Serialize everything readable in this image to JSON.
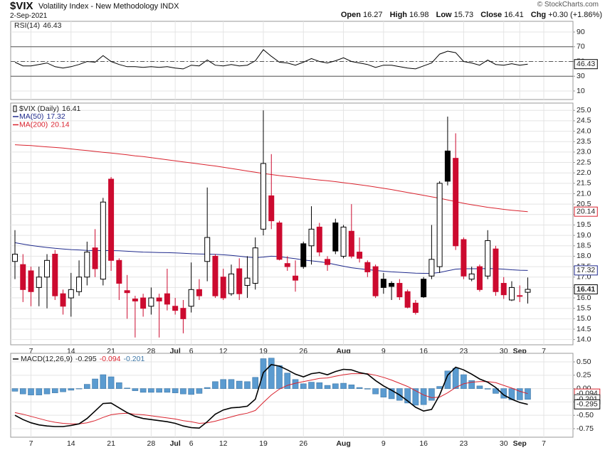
{
  "header": {
    "symbol": "$VIX",
    "name": "Volatility Index - New Methodology INDX",
    "date": "2-Sep-2021",
    "copyright": "© StockCharts.com",
    "quote": [
      {
        "label": "Open",
        "value": 16.27
      },
      {
        "label": "High",
        "value": 16.98
      },
      {
        "label": "Low",
        "value": 15.73
      },
      {
        "label": "Close",
        "value": 16.41
      },
      {
        "label": "Chg",
        "value": "+0.30 (+1.86%)"
      }
    ]
  },
  "chart_data": [
    {
      "type": "line",
      "name": "RSI(14)",
      "ylim": [
        -1.6,
        104.5
      ],
      "yticks": [
        10,
        30,
        50,
        70,
        90
      ],
      "grid": true,
      "reference_lines": [
        {
          "value": 70,
          "style": "solid"
        },
        {
          "value": 50,
          "style": "dashed"
        },
        {
          "value": 30,
          "style": "solid"
        }
      ],
      "series": [
        {
          "color": "#000000",
          "values": [
            49,
            44,
            44,
            46,
            48,
            43,
            41,
            43,
            46,
            50,
            49,
            58,
            50,
            46,
            43,
            43,
            42,
            43,
            42,
            43,
            41,
            40,
            45,
            44,
            52,
            45,
            44,
            46,
            44,
            45,
            51,
            66,
            57,
            49,
            48,
            45,
            49,
            54,
            50,
            48,
            51,
            55,
            50,
            48,
            46,
            42,
            45,
            45,
            43,
            41,
            40,
            44,
            48,
            60,
            64,
            62,
            50,
            48,
            45,
            52,
            46,
            45,
            47,
            45,
            46.43,
            null,
            null
          ]
        }
      ]
    },
    {
      "type": "candlestick",
      "name": "$VIX (Daily)",
      "up_color": "#000000",
      "down_color": "#cc0a2f",
      "grid": true,
      "categories": [
        null,
        null,
        "7",
        null,
        null,
        null,
        null,
        "14",
        null,
        null,
        null,
        null,
        "21",
        null,
        null,
        null,
        null,
        "28",
        null,
        null,
        "Jul",
        null,
        "6",
        null,
        null,
        null,
        "12",
        null,
        null,
        null,
        null,
        "19",
        null,
        null,
        null,
        null,
        "26",
        null,
        null,
        null,
        null,
        "Aug",
        null,
        null,
        null,
        null,
        "9",
        null,
        null,
        null,
        null,
        "16",
        null,
        null,
        null,
        null,
        "23",
        null,
        null,
        null,
        null,
        "30",
        null,
        "Sep",
        null,
        null,
        "7"
      ],
      "open": [
        17.75,
        17.6,
        17.3,
        16.5,
        17.0,
        18.1,
        16.2,
        16.0,
        16.3,
        17.0,
        18.4,
        16.9,
        21.7,
        17.8,
        16.35,
        15.95,
        16.0,
        15.6,
        16.0,
        16.2,
        15.6,
        15.5,
        15.6,
        16.4,
        17.75,
        18.0,
        17.0,
        16.2,
        17.4,
        16.6,
        16.7,
        19.3,
        20.9,
        19.6,
        17.65,
        17.05,
        18.6,
        18.5,
        19.4,
        17.85,
        19.6,
        18.0,
        19.2,
        18.2,
        17.7,
        17.5,
        16.9,
        16.7,
        16.7,
        16.3,
        15.75,
        16.9,
        17.05,
        17.5,
        23.05,
        22.7,
        18.8,
        16.9,
        17.5,
        17.05,
        18.35,
        16.7,
        15.9,
        16.1,
        16.27,
        null,
        null
      ],
      "high": [
        19.25,
        18.1,
        17.5,
        17.5,
        18.1,
        18.3,
        16.4,
        17.2,
        17.8,
        18.7,
        19.3,
        20.8,
        21.8,
        17.9,
        17.1,
        16.1,
        16.2,
        16.5,
        16.2,
        17.4,
        16.0,
        15.9,
        17.7,
        16.9,
        21.3,
        18.1,
        17.4,
        17.6,
        17.9,
        18.0,
        18.9,
        25.0,
        22.9,
        19.7,
        18.0,
        17.8,
        18.7,
        20.4,
        19.6,
        18.0,
        19.8,
        19.5,
        20.5,
        18.9,
        17.8,
        17.6,
        17.2,
        16.8,
        16.9,
        16.4,
        15.9,
        17.0,
        19.5,
        21.6,
        24.7,
        23.9,
        18.9,
        17.5,
        17.6,
        19.25,
        18.5,
        17.0,
        16.8,
        16.6,
        16.98,
        null,
        null
      ],
      "low": [
        16.9,
        15.8,
        15.6,
        15.6,
        15.5,
        15.9,
        15.2,
        15.1,
        16.1,
        16.6,
        17.0,
        16.6,
        17.3,
        15.9,
        15.0,
        14.1,
        15.1,
        15.2,
        14.1,
        15.4,
        15.2,
        14.3,
        15.3,
        15.9,
        16.8,
        16.0,
        15.9,
        16.1,
        15.9,
        16.0,
        16.4,
        19.0,
        19.3,
        17.8,
        17.3,
        16.3,
        17.4,
        17.6,
        18.0,
        17.3,
        18.1,
        17.9,
        17.9,
        17.7,
        17.0,
        16.0,
        16.2,
        15.9,
        15.9,
        15.5,
        15.2,
        16.0,
        16.9,
        17.2,
        21.4,
        18.3,
        16.9,
        16.8,
        16.3,
        16.9,
        16.1,
        15.95,
        15.85,
        15.8,
        15.73,
        null,
        null
      ],
      "close": [
        18.1,
        16.4,
        16.3,
        17.0,
        17.8,
        16.1,
        15.6,
        16.4,
        17.0,
        18.2,
        17.4,
        20.6,
        17.8,
        16.7,
        16.25,
        15.85,
        15.5,
        16.0,
        15.85,
        15.7,
        15.4,
        15.0,
        16.4,
        16.1,
        18.9,
        16.1,
        16.0,
        17.15,
        16.2,
        16.95,
        18.4,
        22.45,
        19.7,
        17.85,
        17.5,
        16.85,
        17.5,
        19.3,
        18.2,
        17.6,
        18.25,
        19.4,
        18.0,
        17.9,
        17.25,
        16.1,
        16.5,
        16.55,
        16.05,
        15.55,
        15.3,
        16.05,
        17.85,
        21.5,
        21.6,
        18.5,
        17.05,
        17.15,
        16.4,
        18.75,
        16.3,
        16.15,
        16.5,
        16.11,
        16.41,
        null,
        null
      ],
      "ylim": [
        13.75,
        25.35
      ],
      "yticks": [
        {
          "value": 14,
          "label": "14.0"
        },
        {
          "value": 14.5,
          "label": "14.5"
        },
        {
          "value": 15,
          "label": "15.0"
        },
        {
          "value": 15.5,
          "label": "15.5"
        },
        {
          "value": 16,
          "label": "16.0"
        },
        {
          "value": 16.5,
          "label": "16.5"
        },
        {
          "value": 17,
          "label": "17.0"
        },
        {
          "value": 17.5,
          "label": "17.5"
        },
        {
          "value": 18,
          "label": "18.0"
        },
        {
          "value": 18.5,
          "label": "18.5"
        },
        {
          "value": 19,
          "label": "19.0"
        },
        {
          "value": 19.5,
          "label": "19.5"
        },
        {
          "value": 20,
          "label": "20.0"
        },
        {
          "value": 20.5,
          "label": "20.5"
        },
        {
          "value": 21,
          "label": "21.0"
        },
        {
          "value": 21.5,
          "label": "21.5"
        },
        {
          "value": 22,
          "label": "22.0"
        },
        {
          "value": 22.5,
          "label": "22.5"
        },
        {
          "value": 23,
          "label": "23.0"
        },
        {
          "value": 23.5,
          "label": "23.5"
        },
        {
          "value": 24,
          "label": "24.0"
        },
        {
          "value": 24.5,
          "label": "24.5"
        },
        {
          "value": 25,
          "label": "25.0"
        }
      ],
      "series": [
        {
          "name": "MA(50)",
          "color": "#1f2a8c",
          "values": [
            18.65,
            18.58,
            18.52,
            18.47,
            18.42,
            18.38,
            18.35,
            18.32,
            18.3,
            18.28,
            18.27,
            18.27,
            18.27,
            18.26,
            18.24,
            18.22,
            18.2,
            18.19,
            18.18,
            18.17,
            18.16,
            18.14,
            18.12,
            18.11,
            18.1,
            18.09,
            18.07,
            18.04,
            18.0,
            17.96,
            17.93,
            17.96,
            18.0,
            17.98,
            17.93,
            17.88,
            17.82,
            17.78,
            17.74,
            17.68,
            17.6,
            17.52,
            17.45,
            17.4,
            17.36,
            17.32,
            17.28,
            17.25,
            17.23,
            17.21,
            17.19,
            17.18,
            17.18,
            17.22,
            17.3,
            17.38,
            17.4,
            17.4,
            17.4,
            17.41,
            17.4,
            17.38,
            17.35,
            17.33,
            17.32,
            null,
            null
          ]
        },
        {
          "name": "MA(200)",
          "color": "#d9232e",
          "values": [
            23.35,
            23.33,
            23.31,
            23.28,
            23.25,
            23.22,
            23.19,
            23.15,
            23.11,
            23.07,
            23.03,
            22.99,
            22.95,
            22.91,
            22.87,
            22.82,
            22.78,
            22.73,
            22.68,
            22.63,
            22.58,
            22.53,
            22.48,
            22.43,
            22.38,
            22.33,
            22.27,
            22.21,
            22.15,
            22.09,
            22.03,
            21.97,
            21.92,
            21.87,
            21.83,
            21.79,
            21.74,
            21.7,
            21.66,
            21.62,
            21.58,
            21.53,
            21.48,
            21.43,
            21.38,
            21.32,
            21.26,
            21.2,
            21.13,
            21.06,
            20.99,
            20.92,
            20.85,
            20.78,
            20.7,
            20.62,
            20.54,
            20.47,
            20.41,
            20.35,
            20.3,
            20.25,
            20.21,
            20.17,
            20.14,
            null,
            null
          ]
        }
      ]
    },
    {
      "type": "macd",
      "name": "MACD(12,26,9)",
      "grid": true,
      "categories": [
        null,
        null,
        "7",
        null,
        null,
        null,
        null,
        "14",
        null,
        null,
        null,
        null,
        "21",
        null,
        null,
        null,
        null,
        "28",
        null,
        null,
        "Jul",
        null,
        "6",
        null,
        null,
        null,
        "12",
        null,
        null,
        null,
        null,
        "19",
        null,
        null,
        null,
        null,
        "26",
        null,
        null,
        null,
        null,
        "Aug",
        null,
        null,
        null,
        null,
        "9",
        null,
        null,
        null,
        null,
        "16",
        null,
        null,
        null,
        null,
        "23",
        null,
        null,
        null,
        null,
        "30",
        null,
        "Sep",
        null,
        null,
        "7"
      ],
      "ylim": [
        -0.91,
        0.66
      ],
      "yticks": [
        {
          "value": 0.5,
          "label": "0.50"
        },
        {
          "value": 0.25,
          "label": "0.25"
        },
        {
          "value": 0,
          "label": "0.00"
        },
        {
          "value": -0.25,
          "label": "-0.25"
        },
        {
          "value": -0.5,
          "label": "-0.50"
        },
        {
          "value": -0.75,
          "label": "-0.75"
        }
      ],
      "series": [
        {
          "kind": "bar",
          "color": "#5b9bd0",
          "values": [
            -0.05,
            -0.1,
            -0.12,
            -0.12,
            -0.1,
            -0.08,
            -0.06,
            -0.03,
            0.0,
            0.08,
            0.18,
            0.26,
            0.22,
            0.11,
            0.01,
            -0.04,
            -0.07,
            -0.07,
            -0.07,
            -0.07,
            -0.08,
            -0.1,
            -0.11,
            -0.09,
            0.02,
            0.13,
            0.17,
            0.17,
            0.14,
            0.13,
            0.21,
            0.56,
            0.57,
            0.43,
            0.29,
            0.17,
            0.09,
            0.12,
            0.11,
            0.06,
            0.09,
            0.1,
            0.07,
            0.02,
            -0.01,
            -0.1,
            -0.16,
            -0.19,
            -0.22,
            -0.27,
            -0.31,
            -0.3,
            -0.22,
            0.04,
            0.33,
            0.38,
            0.26,
            0.15,
            0.05,
            -0.01,
            -0.09,
            -0.18,
            -0.21,
            -0.21,
            -0.201,
            null,
            null
          ]
        },
        {
          "kind": "line",
          "color": "#d9232e",
          "values": [
            -0.45,
            -0.48,
            -0.52,
            -0.56,
            -0.6,
            -0.63,
            -0.65,
            -0.66,
            -0.66,
            -0.64,
            -0.6,
            -0.54,
            -0.49,
            -0.47,
            -0.46,
            -0.48,
            -0.49,
            -0.51,
            -0.53,
            -0.55,
            -0.57,
            -0.6,
            -0.62,
            -0.65,
            -0.64,
            -0.61,
            -0.57,
            -0.53,
            -0.49,
            -0.46,
            -0.41,
            -0.26,
            -0.12,
            -0.01,
            0.06,
            0.1,
            0.13,
            0.16,
            0.19,
            0.2,
            0.23,
            0.26,
            0.28,
            0.28,
            0.28,
            0.25,
            0.21,
            0.16,
            0.1,
            0.04,
            -0.04,
            -0.12,
            -0.17,
            -0.16,
            -0.08,
            0.02,
            0.09,
            0.12,
            0.13,
            0.13,
            0.11,
            0.06,
            0.01,
            -0.05,
            -0.094,
            null,
            null
          ]
        },
        {
          "kind": "line",
          "color": "#000000",
          "values": [
            -0.5,
            -0.58,
            -0.64,
            -0.68,
            -0.7,
            -0.71,
            -0.71,
            -0.69,
            -0.66,
            -0.56,
            -0.42,
            -0.28,
            -0.27,
            -0.36,
            -0.45,
            -0.52,
            -0.56,
            -0.58,
            -0.6,
            -0.62,
            -0.65,
            -0.7,
            -0.73,
            -0.74,
            -0.62,
            -0.48,
            -0.4,
            -0.36,
            -0.35,
            -0.33,
            -0.2,
            0.3,
            0.45,
            0.42,
            0.35,
            0.27,
            0.22,
            0.28,
            0.3,
            0.26,
            0.32,
            0.36,
            0.35,
            0.3,
            0.27,
            0.15,
            0.05,
            -0.03,
            -0.12,
            -0.23,
            -0.35,
            -0.42,
            -0.39,
            -0.12,
            0.25,
            0.4,
            0.35,
            0.27,
            0.18,
            0.12,
            0.02,
            -0.12,
            -0.2,
            -0.26,
            -0.295,
            null,
            null
          ]
        }
      ]
    }
  ]
}
